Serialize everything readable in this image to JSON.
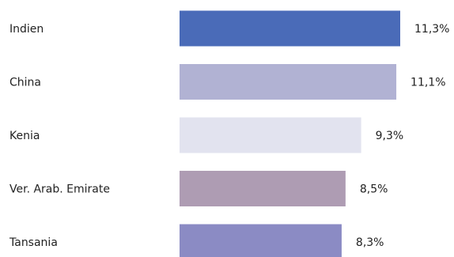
{
  "chart_data": {
    "type": "bar",
    "orientation": "horizontal",
    "categories": [
      "Indien",
      "China",
      "Kenia",
      "Ver. Arab. Emirate",
      "Tansania"
    ],
    "values": [
      11.3,
      11.1,
      9.3,
      8.5,
      8.3
    ],
    "value_labels": [
      "11,3%",
      "11,1%",
      "9,3%",
      "8,5%",
      "8,3%"
    ],
    "colors": [
      "#4a6bb8",
      "#b1b2d3",
      "#e2e3ef",
      "#ae9cb3",
      "#8b8bc4"
    ],
    "title": "",
    "xlabel": "",
    "ylabel": "",
    "xlim": [
      0,
      11.3
    ],
    "grid": false,
    "legend": "none"
  }
}
